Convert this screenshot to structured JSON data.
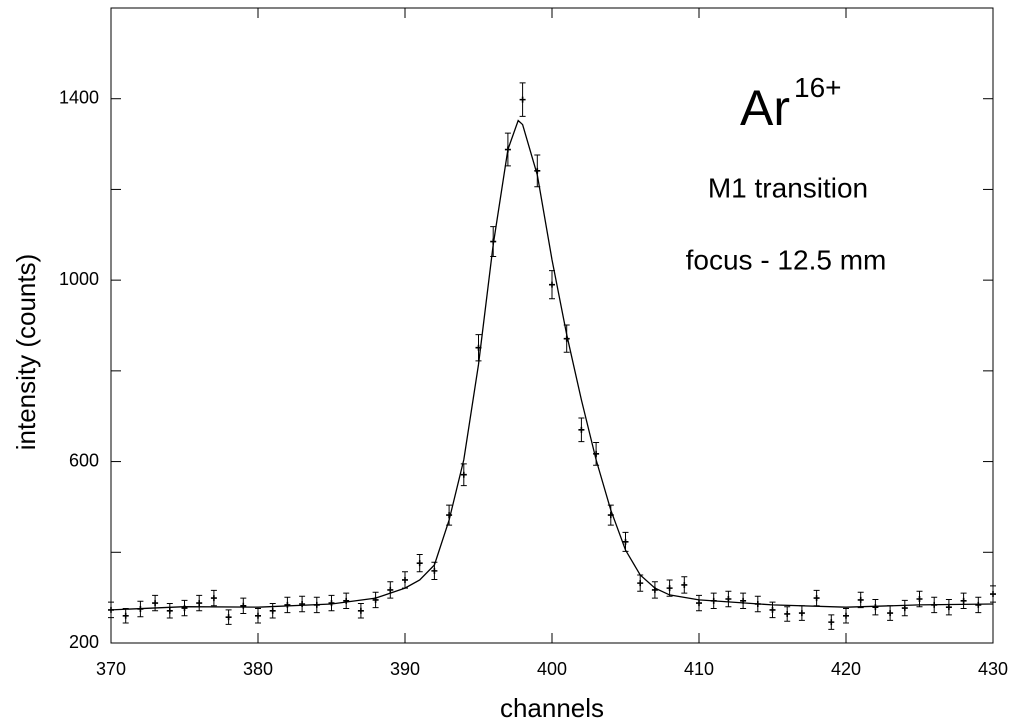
{
  "chart_data": {
    "type": "scatter",
    "x_label": "channels",
    "y_label": "intensity (counts)",
    "ion": {
      "text": "Ar",
      "superscript": "16+"
    },
    "annotations": [
      "M1 transition",
      "focus - 12.5 mm"
    ],
    "color": "#000000",
    "xlim": [
      370,
      430
    ],
    "xticks": [
      370,
      380,
      390,
      400,
      410,
      420,
      430
    ],
    "ylim": [
      200,
      1600
    ],
    "yticks": [
      200,
      600,
      1000,
      1400
    ],
    "minor_yticks": [
      400,
      800,
      1200
    ],
    "points": {
      "x": [
        370,
        371,
        372,
        373,
        374,
        375,
        376,
        377,
        378,
        379,
        380,
        381,
        382,
        383,
        384,
        385,
        386,
        387,
        388,
        389,
        390,
        391,
        392,
        393,
        394,
        395,
        396,
        397,
        398,
        399,
        400,
        401,
        402,
        403,
        404,
        405,
        406,
        407,
        408,
        409,
        410,
        411,
        412,
        413,
        414,
        415,
        416,
        417,
        418,
        419,
        420,
        421,
        422,
        423,
        424,
        425,
        426,
        427,
        428,
        429,
        430
      ],
      "values": [
        273,
        260,
        275,
        288,
        271,
        277,
        288,
        299,
        257,
        282,
        260,
        271,
        284,
        286,
        284,
        288,
        293,
        271,
        295,
        317,
        339,
        376,
        359,
        482,
        571,
        851,
        1085,
        1288,
        1398,
        1241,
        990,
        871,
        670,
        617,
        482,
        423,
        332,
        317,
        321,
        328,
        288,
        293,
        297,
        293,
        286,
        273,
        264,
        266,
        299,
        246,
        260,
        295,
        279,
        266,
        277,
        297,
        284,
        279,
        293,
        284,
        308
      ],
      "errors": [
        17,
        16,
        17,
        17,
        16,
        17,
        17,
        17,
        16,
        17,
        16,
        16,
        17,
        17,
        17,
        17,
        17,
        16,
        17,
        18,
        18,
        19,
        19,
        22,
        24,
        29,
        33,
        36,
        37,
        35,
        31,
        30,
        26,
        25,
        22,
        21,
        18,
        18,
        18,
        18,
        17,
        17,
        17,
        17,
        17,
        17,
        16,
        16,
        17,
        16,
        16,
        17,
        17,
        16,
        17,
        17,
        17,
        17,
        17,
        17,
        18
      ]
    },
    "fit": {
      "x": [
        370,
        375,
        380,
        385,
        388,
        390,
        391,
        392,
        393,
        394,
        395,
        396,
        397,
        397.7,
        398,
        399,
        400,
        401,
        402,
        403,
        404,
        405,
        406,
        407,
        408,
        410,
        415,
        420,
        425,
        430
      ],
      "values": [
        273,
        280,
        279,
        286,
        299,
        321,
        339,
        372,
        471,
        604,
        814,
        1078,
        1288,
        1352,
        1343,
        1232,
        1045,
        880,
        736,
        604,
        493,
        405,
        350,
        321,
        306,
        295,
        284,
        279,
        284,
        286
      ]
    }
  }
}
